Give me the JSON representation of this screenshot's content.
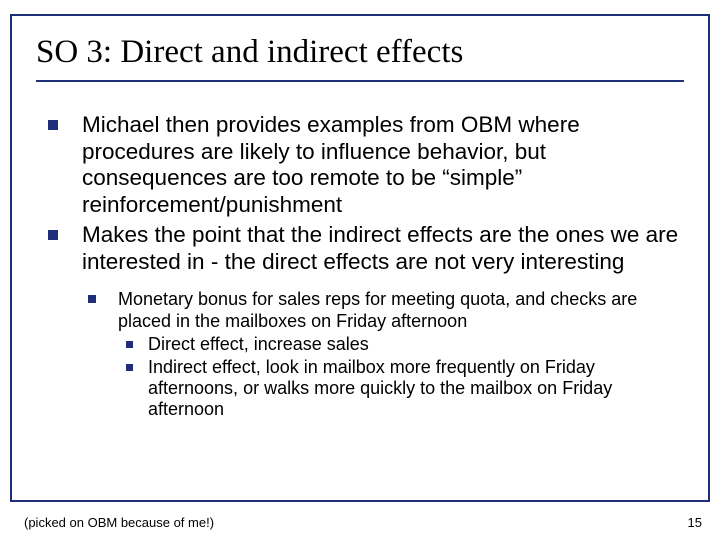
{
  "title": "SO 3: Direct and indirect effects",
  "bullets": [
    {
      "text": "Michael then provides examples from OBM where procedures are likely to influence behavior, but consequences are too remote to be “simple” reinforcement/punishment"
    },
    {
      "text": "Makes the point that the indirect effects are the ones we are interested in - the direct effects are not very interesting",
      "sub": [
        {
          "text": "Monetary bonus for sales reps for meeting quota, and checks are placed in the mailboxes on Friday afternoon",
          "sub": [
            {
              "text": "Direct effect, increase sales"
            },
            {
              "text": "Indirect effect, look in mailbox more frequently on Friday afternoons, or walks more quickly to the mailbox on Friday afternoon"
            }
          ]
        }
      ]
    }
  ],
  "footnote": "(picked on OBM because of me!)",
  "pagenum": "15",
  "colors": {
    "accent": "#1f2e78",
    "bg": "#ffffff",
    "text": "#000000"
  }
}
